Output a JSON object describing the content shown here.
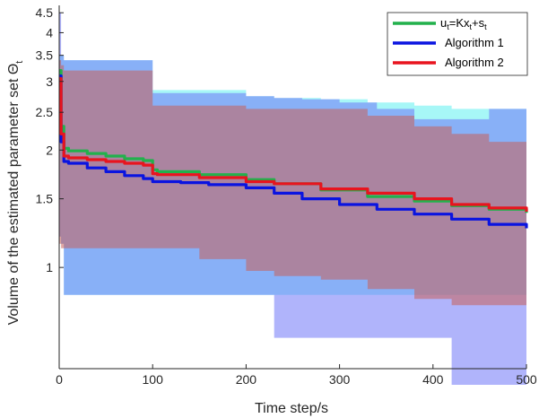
{
  "chart_data": {
    "type": "line",
    "title": "",
    "xlabel": "Time step/s",
    "ylabel": "Volume of the estimated parameter set Θ",
    "ylabel_subscript": "t",
    "xlim": [
      0,
      500
    ],
    "ylim": [
      0.55,
      4.7
    ],
    "yscale": "log",
    "grid": false,
    "legend_position": "top-right",
    "x_ticks": [
      0,
      100,
      200,
      300,
      400,
      500
    ],
    "x_tick_labels": [
      "0",
      "100",
      "200",
      "300",
      "400",
      "500"
    ],
    "y_ticks": [
      1,
      1.5,
      2,
      2.5,
      3,
      3.5,
      4,
      4.5
    ],
    "y_tick_labels": [
      "1",
      "1.5",
      "2",
      "2.5",
      "3",
      "3.5",
      "4",
      "4.5"
    ],
    "series": [
      {
        "name": "u_t=Kx_t+s_t",
        "legend_main": "u",
        "legend_sub1": "t",
        "legend_mid": "=Kx",
        "legend_sub2": "t",
        "legend_plus": "+s",
        "legend_sub3": "t",
        "color": "#22b14c",
        "x": [
          0,
          2,
          5,
          10,
          30,
          50,
          70,
          90,
          100,
          105,
          150,
          200,
          230,
          280,
          330,
          380,
          420,
          460,
          500
        ],
        "values": [
          3.2,
          2.3,
          2.02,
          1.99,
          1.96,
          1.93,
          1.9,
          1.88,
          1.78,
          1.76,
          1.73,
          1.68,
          1.64,
          1.58,
          1.52,
          1.48,
          1.44,
          1.41,
          1.38
        ],
        "band_upper": [
          3.5,
          3.5,
          3.4,
          3.4,
          3.4,
          3.4,
          3.4,
          3.4,
          2.85,
          2.85,
          2.85,
          2.75,
          2.72,
          2.7,
          2.65,
          2.6,
          2.55,
          2.55,
          2.55
        ],
        "band_lower": [
          1.2,
          1.15,
          0.85,
          0.85,
          0.85,
          0.85,
          0.85,
          0.85,
          0.85,
          0.85,
          0.85,
          0.85,
          0.85,
          0.85,
          0.85,
          0.85,
          0.85,
          0.85,
          0.85
        ]
      },
      {
        "name": "Algorithm 1",
        "color": "#0a14e0",
        "x": [
          0,
          2,
          5,
          10,
          30,
          50,
          70,
          90,
          100,
          130,
          160,
          200,
          230,
          260,
          300,
          340,
          380,
          420,
          460,
          500
        ],
        "values": [
          3.1,
          2.1,
          1.87,
          1.85,
          1.8,
          1.76,
          1.72,
          1.69,
          1.66,
          1.65,
          1.63,
          1.6,
          1.55,
          1.5,
          1.45,
          1.41,
          1.37,
          1.33,
          1.29,
          1.26
        ],
        "band_upper": [
          4.5,
          3.5,
          3.4,
          3.4,
          3.4,
          3.4,
          3.4,
          3.4,
          2.8,
          2.8,
          2.8,
          2.75,
          2.72,
          2.7,
          2.65,
          2.55,
          2.4,
          2.4,
          2.55,
          2.55
        ],
        "band_lower": [
          1.2,
          1.15,
          0.85,
          0.85,
          0.85,
          0.85,
          0.85,
          0.85,
          0.85,
          0.85,
          0.85,
          0.85,
          0.66,
          0.66,
          0.66,
          0.66,
          0.66,
          0.5,
          0.5,
          0.5
        ]
      },
      {
        "name": "Algorithm 2",
        "color": "#e8141e",
        "x": [
          0,
          2,
          5,
          10,
          30,
          50,
          70,
          90,
          100,
          105,
          150,
          200,
          230,
          280,
          330,
          380,
          420,
          460,
          500
        ],
        "values": [
          3.05,
          2.2,
          1.93,
          1.91,
          1.89,
          1.87,
          1.85,
          1.83,
          1.74,
          1.73,
          1.7,
          1.66,
          1.64,
          1.59,
          1.55,
          1.5,
          1.45,
          1.42,
          1.39
        ],
        "band_upper": [
          3.4,
          3.3,
          3.2,
          3.2,
          3.2,
          3.2,
          3.2,
          3.2,
          2.6,
          2.6,
          2.6,
          2.55,
          2.55,
          2.55,
          2.45,
          2.3,
          2.2,
          2.1,
          2.0
        ],
        "band_lower": [
          1.15,
          1.12,
          1.12,
          1.12,
          1.12,
          1.12,
          1.12,
          1.12,
          1.12,
          1.12,
          1.05,
          0.98,
          0.95,
          0.93,
          0.88,
          0.83,
          0.8,
          0.8,
          0.8
        ]
      }
    ]
  }
}
